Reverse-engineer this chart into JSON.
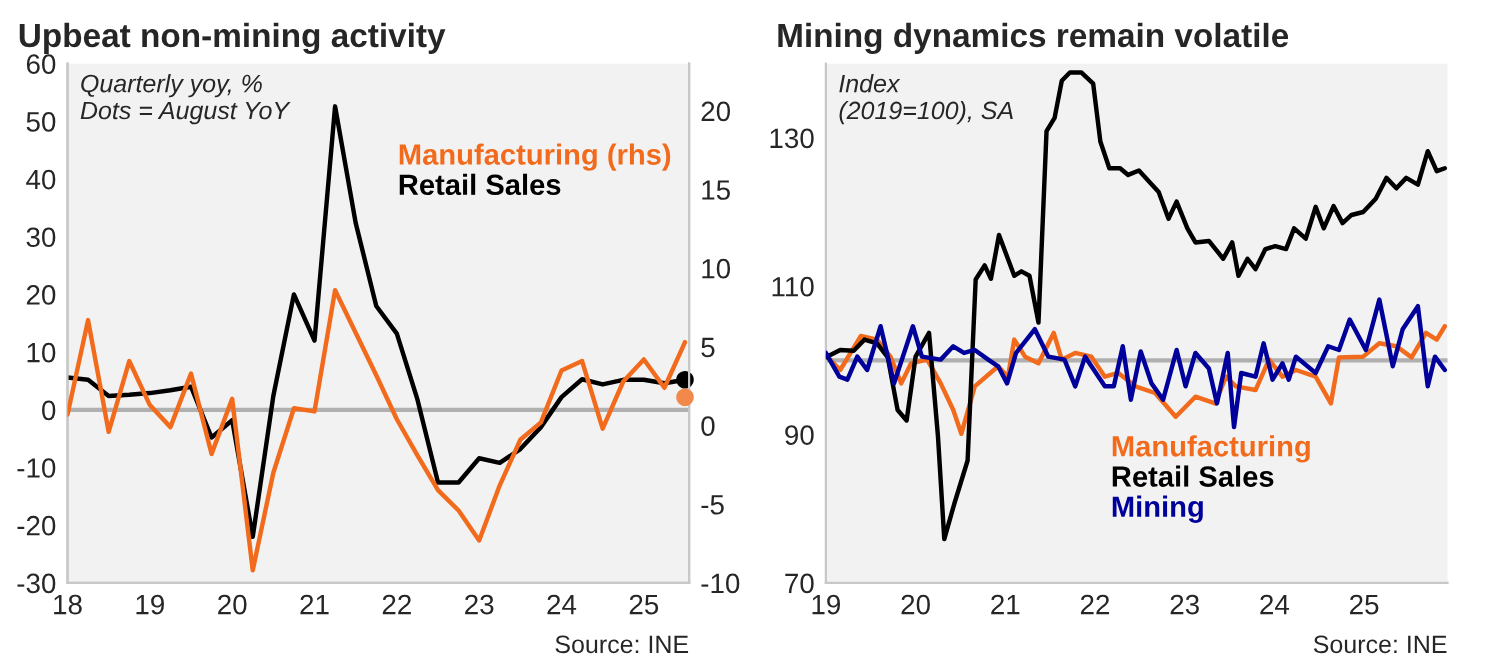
{
  "chart_data": [
    {
      "type": "line",
      "title": "Upbeat non-mining activity",
      "annotations": [
        "Quarterly yoy, %\nDots = August YoY",
        "Source: INE"
      ],
      "x": [
        2018.0,
        2018.25,
        2018.5,
        2018.75,
        2019.0,
        2019.25,
        2019.5,
        2019.75,
        2020.0,
        2020.25,
        2020.5,
        2020.75,
        2021.0,
        2021.25,
        2021.5,
        2021.75,
        2022.0,
        2022.25,
        2022.5,
        2022.75,
        2023.0,
        2023.25,
        2023.5,
        2023.75,
        2024.0,
        2024.25,
        2024.5,
        2024.75,
        2025.0,
        2025.25,
        2025.5
      ],
      "series": [
        {
          "name": "Manufacturing (rhs)",
          "color": "#f26b1d",
          "axis": "y2",
          "values": [
            0.7,
            6.7,
            -0.4,
            4.1,
            1.3,
            -0.1,
            3.3,
            -1.8,
            1.7,
            -9.2,
            -3,
            1.1,
            0.9,
            8.6,
            5.9,
            3.2,
            0.4,
            -1.9,
            -4.1,
            -5.4,
            -7.3,
            -3.8,
            -0.9,
            0.2,
            3.5,
            4.1,
            -0.2,
            2.8,
            4.2,
            2.4,
            5.3
          ]
        },
        {
          "name": "Retail Sales",
          "color": "#000000",
          "axis": "y",
          "values": [
            5.6,
            5.2,
            2.4,
            2.6,
            2.9,
            3.4,
            4,
            -4.8,
            -1.8,
            -22,
            2.4,
            20,
            12,
            52.6,
            32.4,
            18,
            13.2,
            1.8,
            -12.6,
            -12.6,
            -8.4,
            -9.2,
            -6.8,
            -3,
            2.2,
            5.3,
            4.4,
            5.2,
            5.2,
            4.6,
            5.2
          ]
        },
        {
          "type": "scatter",
          "marker": "circle",
          "color": "#000000",
          "axis": "y",
          "x": [
            2025.5
          ],
          "values": [
            5.2
          ]
        },
        {
          "type": "scatter",
          "marker": "circle",
          "color": "#f2894a",
          "axis": "y2",
          "x": [
            2025.5
          ],
          "values": [
            1.8
          ]
        }
      ],
      "xlim": [
        2018,
        2025.55
      ],
      "xticks": [
        {
          "value": 2018,
          "label": "18"
        },
        {
          "value": 2019,
          "label": "19"
        },
        {
          "value": 2020,
          "label": "20"
        },
        {
          "value": 2021,
          "label": "21"
        },
        {
          "value": 2022,
          "label": "22"
        },
        {
          "value": 2023,
          "label": "23"
        },
        {
          "value": 2024,
          "label": "24"
        },
        {
          "value": 2025,
          "label": "25"
        }
      ],
      "ylim": [
        -30,
        60
      ],
      "yticks": [
        -30,
        -20,
        -10,
        0,
        10,
        20,
        30,
        40,
        50,
        60
      ],
      "y2lim": [
        -10,
        23
      ],
      "y2ticks": [
        -10,
        -5,
        0,
        5,
        10,
        15,
        20
      ],
      "ref_lines": [
        {
          "axis": "y",
          "value": 0,
          "color": "#b0b0b0"
        }
      ],
      "grid": false,
      "legend": "top right",
      "marker": "none",
      "line_style": "solid"
    },
    {
      "type": "line",
      "title": "Mining dynamics remain volatile",
      "annotations": [
        "Index\n(2019=100), SA",
        "Source: INE"
      ],
      "series": [
        {
          "name": "Manufacturing",
          "color": "#f26b1d",
          "x": [
            2019.0,
            2019.16,
            2019.39,
            2019.57,
            2019.72,
            2019.84,
            2019.95,
            2020.13,
            2020.28,
            2020.42,
            2020.51,
            2020.66,
            2020.92,
            2021.03,
            2021.1,
            2021.22,
            2021.37,
            2021.54,
            2021.63,
            2021.78,
            2021.96,
            2022.11,
            2022.26,
            2022.45,
            2022.67,
            2022.9,
            2023.12,
            2023.34,
            2023.46,
            2023.57,
            2023.79,
            2023.94,
            2024.09,
            2024.24,
            2024.46,
            2024.63,
            2024.72,
            2024.99,
            2025.17,
            2025.36,
            2025.53,
            2025.69,
            2025.81,
            2025.9
          ],
          "values": [
            100.7,
            98.7,
            103.3,
            102.8,
            100.5,
            96.9,
            99.6,
            100.1,
            96.9,
            93.3,
            90.1,
            96.5,
            99.2,
            97.8,
            102.8,
            100.5,
            99.6,
            103.7,
            100.1,
            101,
            100.5,
            97.8,
            98.3,
            96.5,
            95.6,
            92.4,
            95.1,
            94.2,
            97.8,
            96.5,
            96,
            100.1,
            97.8,
            98.7,
            97.8,
            94.2,
            100.4,
            100.5,
            102.3,
            101.9,
            100.4,
            103.7,
            102.8,
            104.6
          ]
        },
        {
          "name": "Retail Sales",
          "color": "#000000",
          "x": [
            2019.0,
            2019.16,
            2019.31,
            2019.43,
            2019.57,
            2019.69,
            2019.8,
            2019.9,
            2020.0,
            2020.15,
            2020.25,
            2020.32,
            2020.43,
            2020.58,
            2020.67,
            2020.77,
            2020.84,
            2020.93,
            2021.1,
            2021.18,
            2021.27,
            2021.37,
            2021.46,
            2021.55,
            2021.63,
            2021.72,
            2021.85,
            2021.98,
            2022.06,
            2022.16,
            2022.28,
            2022.37,
            2022.49,
            2022.71,
            2022.82,
            2022.91,
            2023.03,
            2023.12,
            2023.27,
            2023.43,
            2023.53,
            2023.6,
            2023.7,
            2023.79,
            2023.9,
            2024.01,
            2024.13,
            2024.22,
            2024.35,
            2024.46,
            2024.55,
            2024.66,
            2024.76,
            2024.86,
            2024.99,
            2025.13,
            2025.25,
            2025.36,
            2025.47,
            2025.6,
            2025.71,
            2025.81,
            2025.9
          ],
          "values": [
            100.4,
            101.4,
            101.3,
            102.8,
            102.3,
            100.4,
            93.3,
            91.9,
            100.5,
            103.7,
            89.7,
            75.9,
            80.6,
            86.5,
            110.9,
            112.8,
            111,
            116.9,
            111.4,
            112,
            111.4,
            105.1,
            130.9,
            132.7,
            137.7,
            138.8,
            138.8,
            137.3,
            129.5,
            125.9,
            125.9,
            125,
            125.6,
            122.7,
            119.1,
            121.4,
            117.8,
            115.9,
            116.1,
            113.7,
            115.9,
            111.4,
            113.7,
            112.3,
            115,
            115.4,
            115,
            117.8,
            116.4,
            120.7,
            117.8,
            120.8,
            118.5,
            119.6,
            120,
            121.8,
            124.6,
            123.2,
            124.6,
            123.7,
            128.2,
            125.5,
            125.9
          ]
        },
        {
          "name": "Mining",
          "color": "#00009a",
          "x": [
            2019.0,
            2019.15,
            2019.24,
            2019.35,
            2019.46,
            2019.61,
            2019.76,
            2019.97,
            2020.07,
            2020.28,
            2020.42,
            2020.54,
            2020.66,
            2020.81,
            2020.92,
            2021.02,
            2021.12,
            2021.33,
            2021.48,
            2021.66,
            2021.78,
            2021.89,
            2022.11,
            2022.21,
            2022.31,
            2022.4,
            2022.51,
            2022.63,
            2022.76,
            2022.91,
            2023.01,
            2023.12,
            2023.27,
            2023.36,
            2023.48,
            2023.55,
            2023.63,
            2023.79,
            2023.88,
            2023.98,
            2024.09,
            2024.16,
            2024.24,
            2024.46,
            2024.6,
            2024.72,
            2024.84,
            2025.02,
            2025.17,
            2025.32,
            2025.43,
            2025.6,
            2025.71,
            2025.79,
            2025.9
          ],
          "values": [
            101,
            97.8,
            97.4,
            100.5,
            98.7,
            104.6,
            96.9,
            104.6,
            100.5,
            100.1,
            101.9,
            101,
            101.4,
            100.1,
            99.2,
            96.9,
            101,
            104.2,
            100.5,
            100.1,
            96.5,
            100.5,
            96.5,
            96.5,
            101.9,
            94.7,
            101.2,
            96.9,
            94.7,
            101.4,
            96.5,
            101,
            98.9,
            94.2,
            101,
            91,
            98.3,
            97.8,
            102.3,
            97.4,
            99.6,
            97.4,
            100.5,
            98.3,
            101.9,
            101.4,
            105.5,
            101.4,
            108.2,
            99.2,
            104.2,
            107.3,
            96.5,
            100.5,
            98.7
          ]
        }
      ],
      "xlim": [
        2019,
        2025.93
      ],
      "xticks": [
        {
          "value": 2019,
          "label": "19"
        },
        {
          "value": 2020,
          "label": "20"
        },
        {
          "value": 2021,
          "label": "21"
        },
        {
          "value": 2022,
          "label": "22"
        },
        {
          "value": 2023,
          "label": "23"
        },
        {
          "value": 2024,
          "label": "24"
        },
        {
          "value": 2025,
          "label": "25"
        }
      ],
      "ylim": [
        70,
        140
      ],
      "yticks": [
        70,
        90,
        110,
        130
      ],
      "ref_lines": [
        {
          "axis": "y",
          "value": 100,
          "color": "#b0b0b0"
        }
      ],
      "grid": false,
      "legend": "bottom",
      "marker": "none",
      "line_style": "solid"
    }
  ]
}
